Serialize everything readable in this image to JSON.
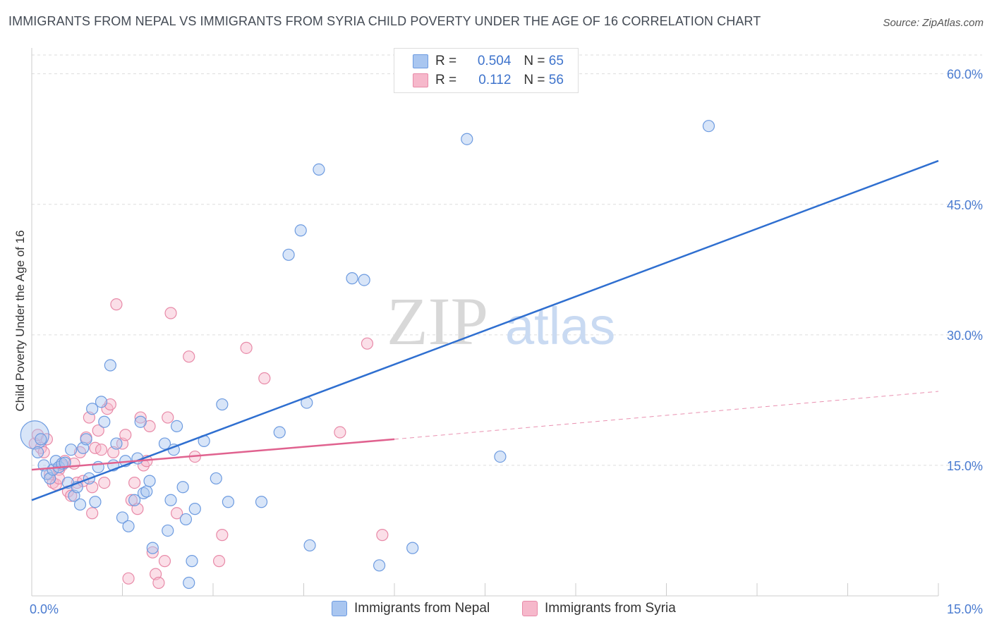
{
  "title": "IMMIGRANTS FROM NEPAL VS IMMIGRANTS FROM SYRIA CHILD POVERTY UNDER THE AGE OF 16 CORRELATION CHART",
  "source": "Source: ZipAtlas.com",
  "watermark": {
    "zip": "ZIP",
    "atlas": "atlas"
  },
  "colors": {
    "nepal_fill": "#a9c6f0",
    "nepal_stroke": "#6d9be0",
    "nepal_line": "#2f6fd0",
    "syria_fill": "#f6b8cb",
    "syria_stroke": "#e88aa8",
    "syria_line": "#e0628f",
    "tick_text": "#4a7bd0",
    "grid": "#dddddd"
  },
  "legend": {
    "nepal": {
      "r_label": "R =",
      "r_value": "0.504",
      "n_label": "N =",
      "n_value": "65"
    },
    "syria": {
      "r_label": "R =",
      "r_value": "0.112",
      "n_label": "N =",
      "n_value": "56"
    }
  },
  "chart_data": {
    "type": "scatter",
    "title": "IMMIGRANTS FROM NEPAL VS IMMIGRANTS FROM SYRIA CHILD POVERTY UNDER THE AGE OF 16 CORRELATION CHART",
    "xlabel": "",
    "ylabel": "Child Poverty Under the Age of 16",
    "xlim": [
      0,
      15
    ],
    "ylim": [
      0,
      62
    ],
    "x_ticks": [
      "0.0%",
      "15.0%"
    ],
    "y_ticks": [
      {
        "value": 15,
        "label": "15.0%"
      },
      {
        "value": 30,
        "label": "30.0%"
      },
      {
        "value": 45,
        "label": "45.0%"
      },
      {
        "value": 60,
        "label": "60.0%"
      }
    ],
    "grid": true,
    "legend_position": "top-center",
    "series": [
      {
        "name": "Immigrants from Nepal",
        "points": [
          [
            0.05,
            18.5
          ],
          [
            0.1,
            16.5
          ],
          [
            0.15,
            18.0
          ],
          [
            0.2,
            15.0
          ],
          [
            0.25,
            14.0
          ],
          [
            0.3,
            13.5
          ],
          [
            0.35,
            14.5
          ],
          [
            0.4,
            15.5
          ],
          [
            0.45,
            14.8
          ],
          [
            0.5,
            15.2
          ],
          [
            0.55,
            15.3
          ],
          [
            0.6,
            13.0
          ],
          [
            0.65,
            16.8
          ],
          [
            0.7,
            11.5
          ],
          [
            0.75,
            12.5
          ],
          [
            0.8,
            10.5
          ],
          [
            0.85,
            17.0
          ],
          [
            0.9,
            18.0
          ],
          [
            0.95,
            13.5
          ],
          [
            1.0,
            21.5
          ],
          [
            1.05,
            10.8
          ],
          [
            1.1,
            14.8
          ],
          [
            1.15,
            22.3
          ],
          [
            1.2,
            20.0
          ],
          [
            1.3,
            26.5
          ],
          [
            1.35,
            15.0
          ],
          [
            1.4,
            17.5
          ],
          [
            1.5,
            9.0
          ],
          [
            1.55,
            15.5
          ],
          [
            1.6,
            8.0
          ],
          [
            1.7,
            11.0
          ],
          [
            1.75,
            15.8
          ],
          [
            1.8,
            20.0
          ],
          [
            1.85,
            11.8
          ],
          [
            1.9,
            12.0
          ],
          [
            1.95,
            13.2
          ],
          [
            2.0,
            5.5
          ],
          [
            2.2,
            17.5
          ],
          [
            2.25,
            7.5
          ],
          [
            2.3,
            11.0
          ],
          [
            2.35,
            16.8
          ],
          [
            2.4,
            19.5
          ],
          [
            2.5,
            12.5
          ],
          [
            2.55,
            8.8
          ],
          [
            2.6,
            1.5
          ],
          [
            2.65,
            4.0
          ],
          [
            2.7,
            10.0
          ],
          [
            2.85,
            17.8
          ],
          [
            3.05,
            13.5
          ],
          [
            3.15,
            22.0
          ],
          [
            3.25,
            10.8
          ],
          [
            3.8,
            10.8
          ],
          [
            4.1,
            18.8
          ],
          [
            4.25,
            39.2
          ],
          [
            4.45,
            42.0
          ],
          [
            4.55,
            22.2
          ],
          [
            4.6,
            5.8
          ],
          [
            4.75,
            49.0
          ],
          [
            5.3,
            36.5
          ],
          [
            5.5,
            36.3
          ],
          [
            5.75,
            3.5
          ],
          [
            6.3,
            5.5
          ],
          [
            7.2,
            52.5
          ],
          [
            7.75,
            16.0
          ],
          [
            11.2,
            54.0
          ]
        ],
        "trend": {
          "x": [
            0,
            15
          ],
          "y": [
            11.0,
            50.0
          ]
        }
      },
      {
        "name": "Immigrants from Syria",
        "points": [
          [
            0.05,
            17.5
          ],
          [
            0.1,
            18.5
          ],
          [
            0.15,
            17.0
          ],
          [
            0.2,
            16.5
          ],
          [
            0.25,
            18.0
          ],
          [
            0.3,
            14.0
          ],
          [
            0.35,
            13.0
          ],
          [
            0.4,
            12.8
          ],
          [
            0.45,
            14.5
          ],
          [
            0.5,
            15.0
          ],
          [
            0.55,
            15.5
          ],
          [
            0.6,
            12.0
          ],
          [
            0.65,
            11.5
          ],
          [
            0.7,
            15.2
          ],
          [
            0.75,
            13.0
          ],
          [
            0.8,
            16.5
          ],
          [
            0.85,
            13.2
          ],
          [
            0.9,
            18.2
          ],
          [
            0.95,
            20.5
          ],
          [
            1.0,
            9.5
          ],
          [
            1.05,
            17.0
          ],
          [
            1.1,
            19.0
          ],
          [
            1.15,
            16.8
          ],
          [
            1.2,
            13.0
          ],
          [
            1.25,
            21.5
          ],
          [
            1.3,
            22.0
          ],
          [
            1.35,
            16.5
          ],
          [
            1.4,
            33.5
          ],
          [
            1.5,
            17.5
          ],
          [
            1.55,
            18.5
          ],
          [
            1.6,
            2.0
          ],
          [
            1.65,
            11.0
          ],
          [
            1.7,
            13.0
          ],
          [
            1.75,
            10.0
          ],
          [
            1.8,
            20.5
          ],
          [
            1.85,
            15.0
          ],
          [
            1.9,
            15.5
          ],
          [
            1.95,
            19.5
          ],
          [
            2.0,
            5.0
          ],
          [
            2.05,
            2.5
          ],
          [
            2.1,
            1.5
          ],
          [
            2.2,
            4.0
          ],
          [
            2.25,
            20.5
          ],
          [
            2.3,
            32.5
          ],
          [
            2.4,
            9.5
          ],
          [
            2.6,
            27.5
          ],
          [
            2.7,
            16.0
          ],
          [
            3.1,
            4.0
          ],
          [
            3.15,
            7.0
          ],
          [
            3.55,
            28.5
          ],
          [
            3.85,
            25.0
          ],
          [
            5.1,
            18.8
          ],
          [
            5.55,
            29.0
          ],
          [
            5.8,
            7.0
          ],
          [
            0.45,
            13.5
          ],
          [
            1.0,
            12.5
          ]
        ],
        "trend": {
          "x": [
            0,
            6
          ],
          "y": [
            14.5,
            18.0
          ]
        },
        "trend_extension": {
          "x": [
            6,
            15
          ],
          "y": [
            18.0,
            23.5
          ]
        }
      }
    ]
  },
  "bottom_legend": {
    "nepal": "Immigrants from Nepal",
    "syria": "Immigrants from Syria"
  }
}
